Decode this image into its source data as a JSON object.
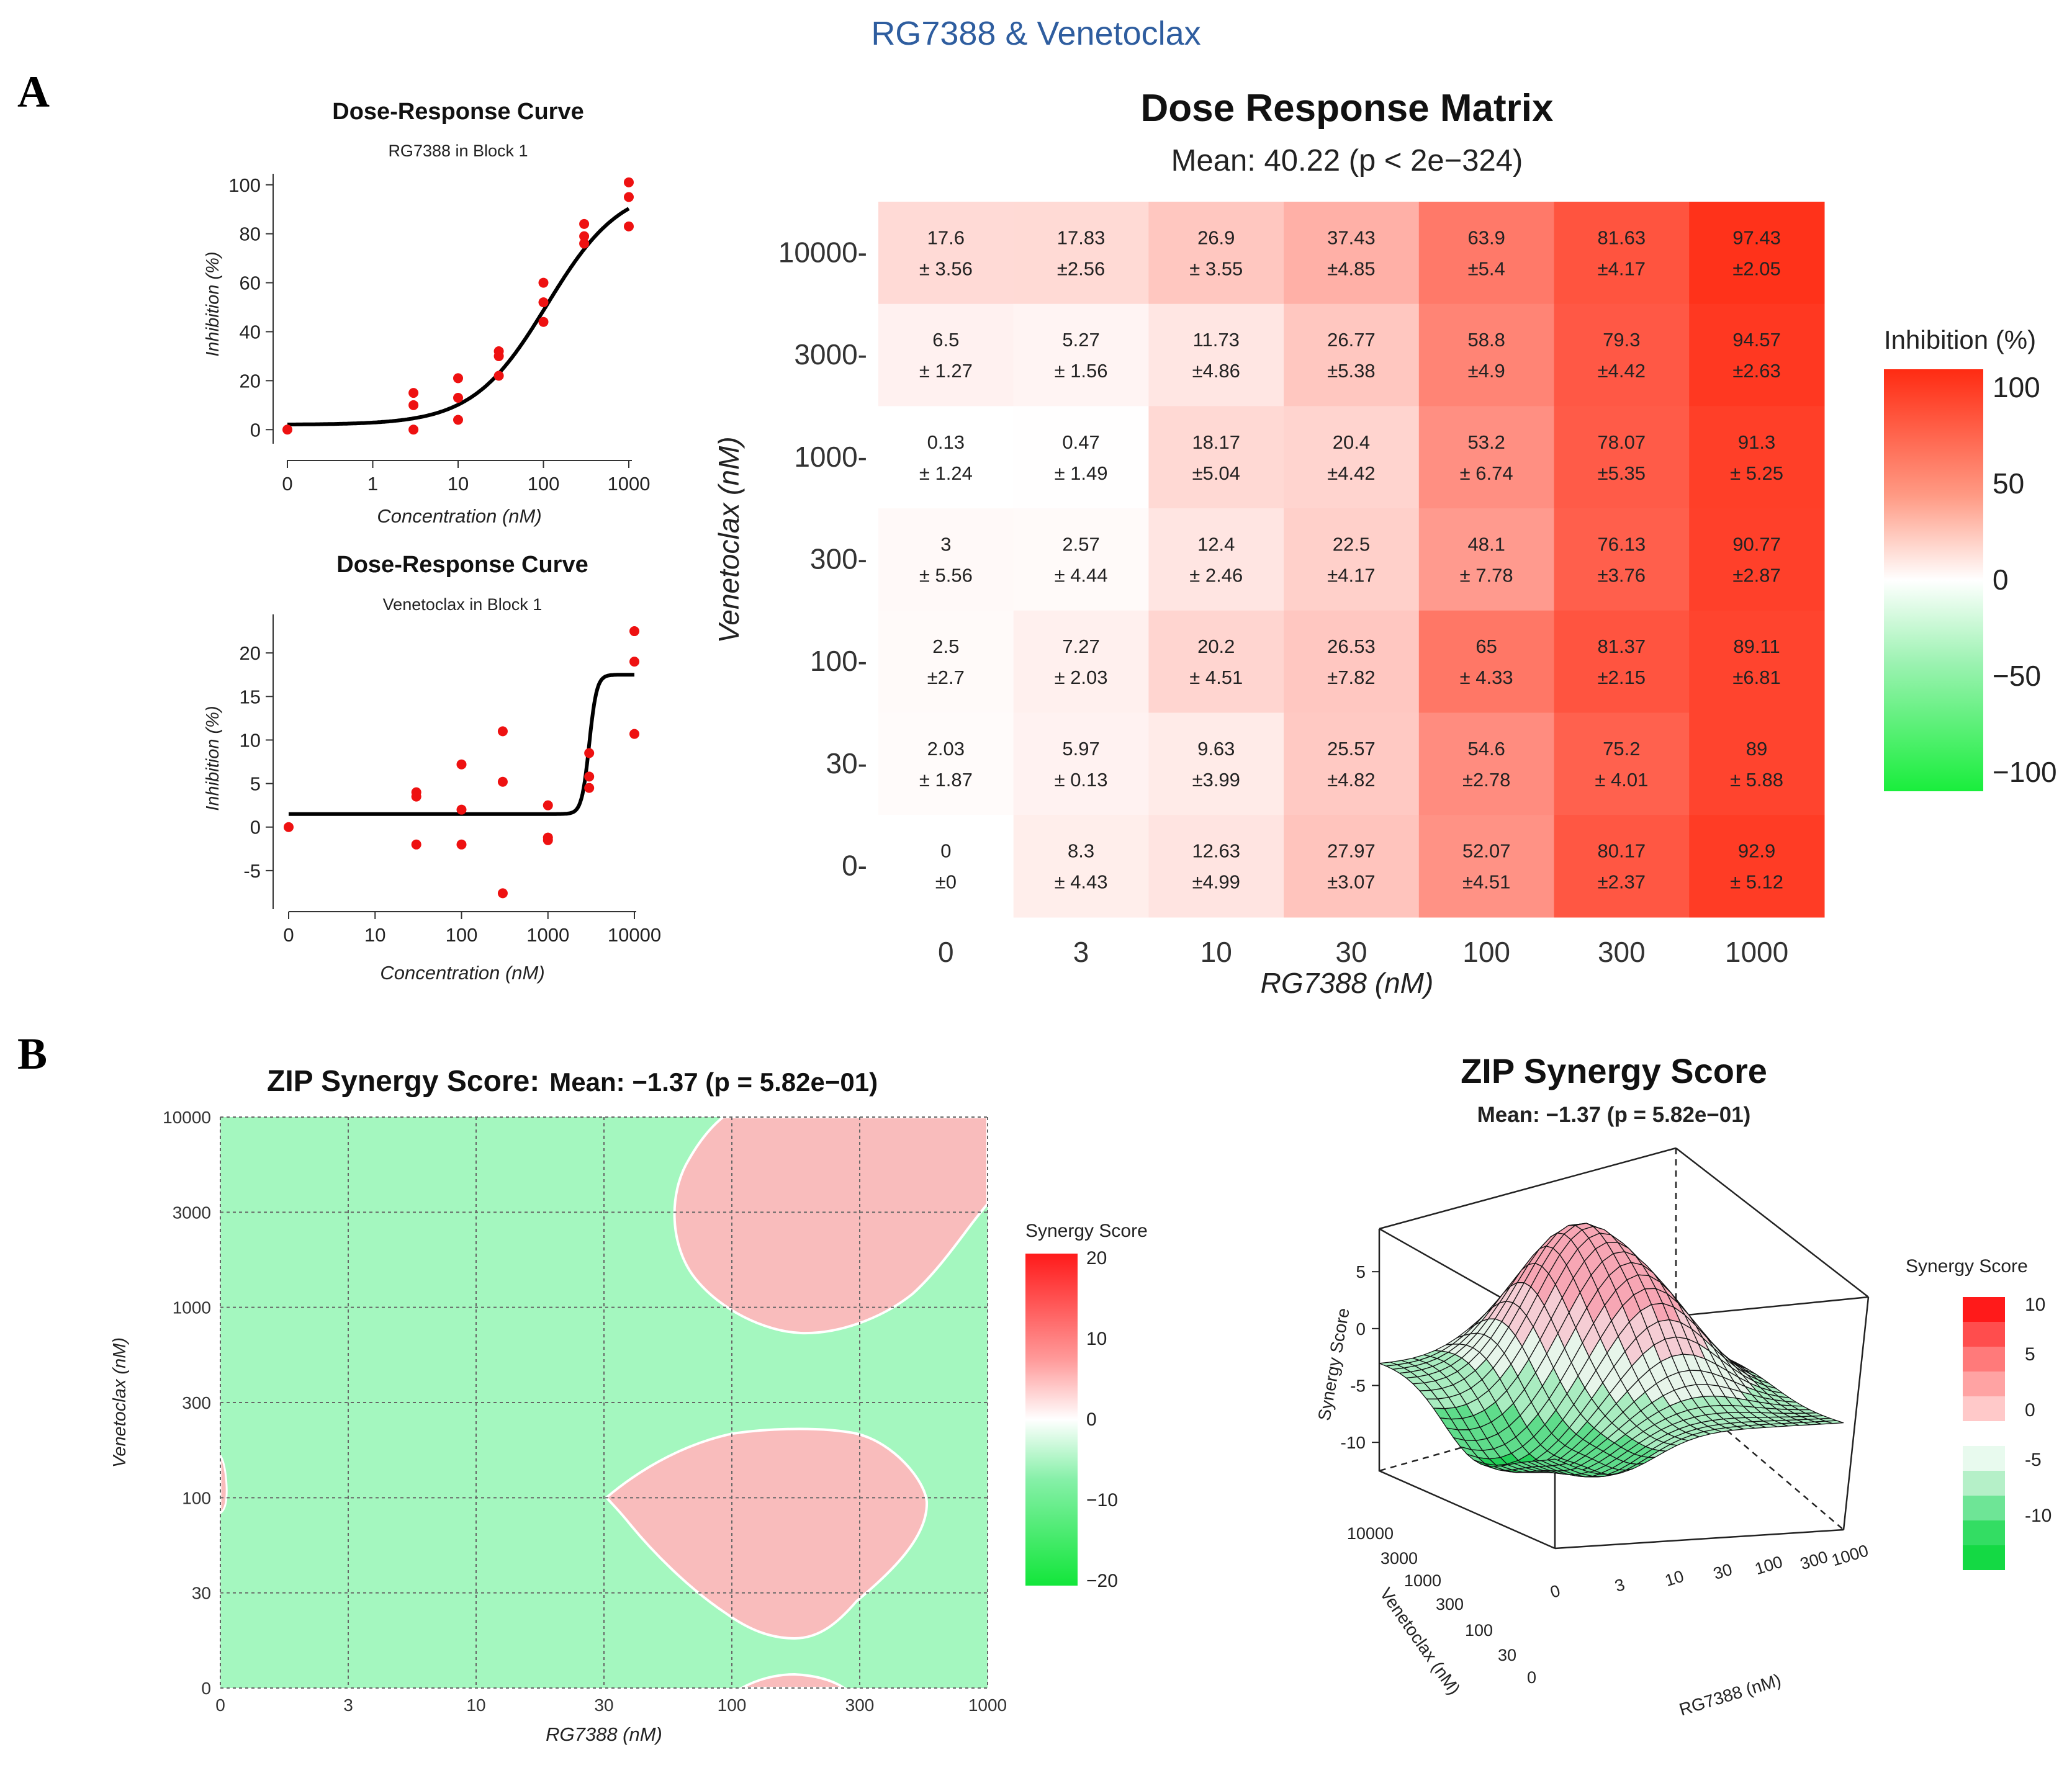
{
  "figure_title": "RG7388 & Venetoclax",
  "panel_labels": [
    "A",
    "B"
  ],
  "colors": {
    "title_blue": "#2e5d9f",
    "red_dot": "#ee1111",
    "syn_green": "#a4f7bf",
    "syn_pink": "#f9bcbc"
  },
  "chart_data": [
    {
      "id": "dr1",
      "type": "scatter",
      "title": "Dose-Response Curve",
      "subtitle": "RG7388 in Block 1",
      "xlabel": "Concentration (nM)",
      "ylabel": "Inhibition (%)",
      "xticks": [
        "0",
        "1",
        "10",
        "100",
        "1000"
      ],
      "yticks": [
        "0",
        "20",
        "40",
        "60",
        "80",
        "100"
      ],
      "xtick_values": [
        0.1,
        1,
        10,
        100,
        1000
      ],
      "ytick_values": [
        0,
        20,
        40,
        60,
        80,
        100
      ],
      "ylim": [
        -5,
        104
      ],
      "points": [
        [
          0.1,
          0
        ],
        [
          3,
          15
        ],
        [
          3,
          10
        ],
        [
          3,
          0
        ],
        [
          10,
          21
        ],
        [
          10,
          13
        ],
        [
          10,
          4
        ],
        [
          30,
          32
        ],
        [
          30,
          30
        ],
        [
          30,
          22
        ],
        [
          100,
          60
        ],
        [
          100,
          52
        ],
        [
          100,
          44
        ],
        [
          300,
          84
        ],
        [
          300,
          79
        ],
        [
          300,
          76
        ],
        [
          1000,
          101
        ],
        [
          1000,
          95
        ],
        [
          1000,
          83
        ]
      ],
      "curve": {
        "bottom": 2,
        "top": 100,
        "ec50": 110,
        "hill": 1.0
      }
    },
    {
      "id": "dr2",
      "type": "scatter",
      "title": "Dose-Response Curve",
      "subtitle": "Venetoclax in Block 1",
      "xlabel": "Concentration (nM)",
      "ylabel": "Inhibition (%)",
      "xticks": [
        "0",
        "10",
        "100",
        "1000",
        "10000"
      ],
      "yticks": [
        "-5",
        "0",
        "5",
        "10",
        "15",
        "20"
      ],
      "xtick_values": [
        1,
        10,
        100,
        1000,
        10000
      ],
      "ytick_values": [
        -5,
        0,
        5,
        10,
        15,
        20
      ],
      "ylim": [
        -8.5,
        24
      ],
      "points": [
        [
          1,
          0
        ],
        [
          30,
          4
        ],
        [
          30,
          3.5
        ],
        [
          30,
          -2
        ],
        [
          100,
          7.2
        ],
        [
          100,
          2
        ],
        [
          100,
          -2
        ],
        [
          300,
          11
        ],
        [
          300,
          5.2
        ],
        [
          300,
          -7.6
        ],
        [
          1000,
          2.5
        ],
        [
          1000,
          -1.2
        ],
        [
          1000,
          -1.5
        ],
        [
          3000,
          8.5
        ],
        [
          3000,
          5.8
        ],
        [
          3000,
          4.5
        ],
        [
          10000,
          22.5
        ],
        [
          10000,
          19
        ],
        [
          10000,
          10.7
        ]
      ],
      "curve": {
        "bottom": 1.5,
        "top": 17.5,
        "ec50": 3000,
        "hill": 10
      }
    },
    {
      "id": "matrix",
      "type": "heatmap",
      "title": "Dose Response Matrix",
      "subtitle": "Mean: 40.22 (p < 2e−324)",
      "xlabel": "RG7388 (nM)",
      "ylabel": "Venetoclax (nM)",
      "x_categories": [
        "0",
        "3",
        "10",
        "30",
        "100",
        "300",
        "1000"
      ],
      "y_categories": [
        "10000",
        "3000",
        "1000",
        "300",
        "100",
        "30",
        "0"
      ],
      "cells": [
        [
          {
            "v": "17.6",
            "e": "± 3.56",
            "n": 17.6
          },
          {
            "v": "17.83",
            "e": "±2.56",
            "n": 17.83
          },
          {
            "v": "26.9",
            "e": "± 3.55",
            "n": 26.9
          },
          {
            "v": "37.43",
            "e": "±4.85",
            "n": 37.43
          },
          {
            "v": "63.9",
            "e": "±5.4",
            "n": 63.9
          },
          {
            "v": "81.63",
            "e": "±4.17",
            "n": 81.63
          },
          {
            "v": "97.43",
            "e": "±2.05",
            "n": 97.43
          }
        ],
        [
          {
            "v": "6.5",
            "e": "± 1.27",
            "n": 6.5
          },
          {
            "v": "5.27",
            "e": "± 1.56",
            "n": 5.27
          },
          {
            "v": "11.73",
            "e": "±4.86",
            "n": 11.73
          },
          {
            "v": "26.77",
            "e": "±5.38",
            "n": 26.77
          },
          {
            "v": "58.8",
            "e": "±4.9",
            "n": 58.8
          },
          {
            "v": "79.3",
            "e": "±4.42",
            "n": 79.3
          },
          {
            "v": "94.57",
            "e": "±2.63",
            "n": 94.57
          }
        ],
        [
          {
            "v": "0.13",
            "e": "± 1.24",
            "n": 0.13
          },
          {
            "v": "0.47",
            "e": "± 1.49",
            "n": 0.47
          },
          {
            "v": "18.17",
            "e": "±5.04",
            "n": 18.17
          },
          {
            "v": "20.4",
            "e": "±4.42",
            "n": 20.4
          },
          {
            "v": "53.2",
            "e": "± 6.74",
            "n": 53.2
          },
          {
            "v": "78.07",
            "e": "±5.35",
            "n": 78.07
          },
          {
            "v": "91.3",
            "e": "± 5.25",
            "n": 91.3
          }
        ],
        [
          {
            "v": "3",
            "e": "± 5.56",
            "n": 3
          },
          {
            "v": "2.57",
            "e": "± 4.44",
            "n": 2.57
          },
          {
            "v": "12.4",
            "e": "± 2.46",
            "n": 12.4
          },
          {
            "v": "22.5",
            "e": "±4.17",
            "n": 22.5
          },
          {
            "v": "48.1",
            "e": "± 7.78",
            "n": 48.1
          },
          {
            "v": "76.13",
            "e": "±3.76",
            "n": 76.13
          },
          {
            "v": "90.77",
            "e": "±2.87",
            "n": 90.77
          }
        ],
        [
          {
            "v": "2.5",
            "e": "±2.7",
            "n": 2.5
          },
          {
            "v": "7.27",
            "e": "± 2.03",
            "n": 7.27
          },
          {
            "v": "20.2",
            "e": "± 4.51",
            "n": 20.2
          },
          {
            "v": "26.53",
            "e": "±7.82",
            "n": 26.53
          },
          {
            "v": "65",
            "e": "± 4.33",
            "n": 65
          },
          {
            "v": "81.37",
            "e": "±2.15",
            "n": 81.37
          },
          {
            "v": "89.11",
            "e": "±6.81",
            "n": 89.11
          }
        ],
        [
          {
            "v": "2.03",
            "e": "± 1.87",
            "n": 2.03
          },
          {
            "v": "5.97",
            "e": "± 0.13",
            "n": 5.97
          },
          {
            "v": "9.63",
            "e": "±3.99",
            "n": 9.63
          },
          {
            "v": "25.57",
            "e": "±4.82",
            "n": 25.57
          },
          {
            "v": "54.6",
            "e": "±2.78",
            "n": 54.6
          },
          {
            "v": "75.2",
            "e": "± 4.01",
            "n": 75.2
          },
          {
            "v": "89",
            "e": "± 5.88",
            "n": 89
          }
        ],
        [
          {
            "v": "0",
            "e": "±0",
            "n": 0
          },
          {
            "v": "8.3",
            "e": "± 4.43",
            "n": 8.3
          },
          {
            "v": "12.63",
            "e": "±4.99",
            "n": 12.63
          },
          {
            "v": "27.97",
            "e": "±3.07",
            "n": 27.97
          },
          {
            "v": "52.07",
            "e": "±4.51",
            "n": 52.07
          },
          {
            "v": "80.17",
            "e": "±2.37",
            "n": 80.17
          },
          {
            "v": "92.9",
            "e": "± 5.12",
            "n": 92.9
          }
        ]
      ],
      "legend_title": "Inhibition (%)",
      "legend_ticks": [
        "100",
        "50",
        "0",
        "−50",
        "−100"
      ]
    },
    {
      "id": "zip2d",
      "type": "heatmap",
      "title": "ZIP  Synergy Score:",
      "title_stat": "Mean: −1.37 (p = 5.82e−01)",
      "xlabel": "RG7388 (nM)",
      "ylabel": "Venetoclax (nM)",
      "x_categories": [
        "0",
        "3",
        "10",
        "30",
        "100",
        "300",
        "1000"
      ],
      "y_categories": [
        "0",
        "30",
        "100",
        "300",
        "1000",
        "3000",
        "10000"
      ],
      "legend_title": "Synergy Score",
      "legend_ticks": [
        "20",
        "10",
        "0",
        "−10",
        "−20"
      ]
    },
    {
      "id": "zip3d",
      "type": "surface",
      "title": "ZIP  Synergy Score",
      "subtitle": "Mean: −1.37  (p = 5.82e−01)",
      "zlabel": "Synergy Score",
      "xlabel": "RG7388 (nM)",
      "ylabel": "Venetoclax (nM)",
      "z_ticks": [
        "5",
        "0",
        "-5",
        "-10"
      ],
      "x_ticks": [
        "0",
        "3",
        "10",
        "30",
        "100",
        "300",
        "1000"
      ],
      "y_ticks": [
        "10000",
        "3000",
        "1000",
        "300",
        "100",
        "30",
        "0"
      ],
      "legend_title": "Synergy Score",
      "legend_ticks": [
        "10",
        "5",
        "0",
        "-5",
        "-10"
      ]
    }
  ]
}
